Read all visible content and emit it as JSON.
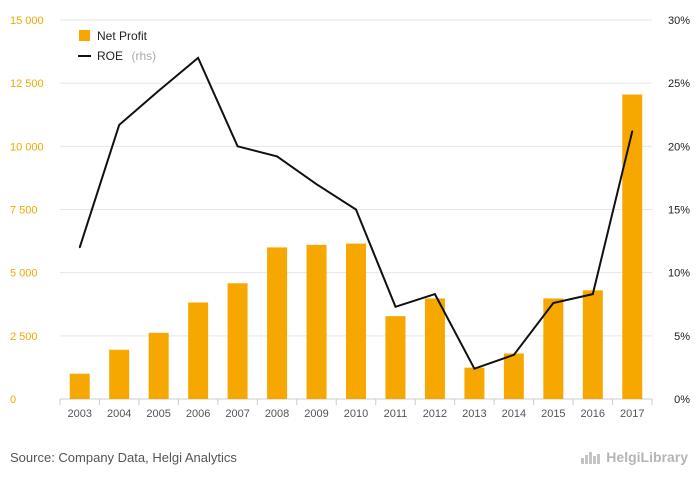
{
  "chart_data": {
    "type": "bar+line",
    "categories": [
      "2003",
      "2004",
      "2005",
      "2006",
      "2007",
      "2008",
      "2009",
      "2010",
      "2011",
      "2012",
      "2013",
      "2014",
      "2015",
      "2016",
      "2017"
    ],
    "series": [
      {
        "name": "Net Profit",
        "type": "bar",
        "axis": "left",
        "color": "#f7a800",
        "values": [
          1000,
          1950,
          2620,
          3820,
          4580,
          6000,
          6100,
          6150,
          3280,
          3980,
          1240,
          1800,
          3980,
          4300,
          12050
        ]
      },
      {
        "name": "ROE",
        "axis_note": "(rhs)",
        "type": "line",
        "axis": "right",
        "color": "#111111",
        "values": [
          12.0,
          21.7,
          24.4,
          27.0,
          20.0,
          19.2,
          17.0,
          15.0,
          7.3,
          8.3,
          2.4,
          3.5,
          7.6,
          8.3,
          21.2
        ]
      }
    ],
    "y_left": {
      "min": 0,
      "max": 15000,
      "ticks": [
        "0",
        "2 500",
        "5 000",
        "7 500",
        "10 000",
        "12 500",
        "15 000"
      ]
    },
    "y_right": {
      "min": 0,
      "max": 30,
      "ticks": [
        "0%",
        "5%",
        "10%",
        "15%",
        "20%",
        "25%",
        "30%"
      ]
    },
    "grid": true,
    "legend_position": "top-left"
  },
  "footer": {
    "source": "Source: Company Data, Helgi Analytics",
    "brand": "HelgiLibrary"
  },
  "icons": {
    "brand": "helgi-library-logo-icon"
  }
}
